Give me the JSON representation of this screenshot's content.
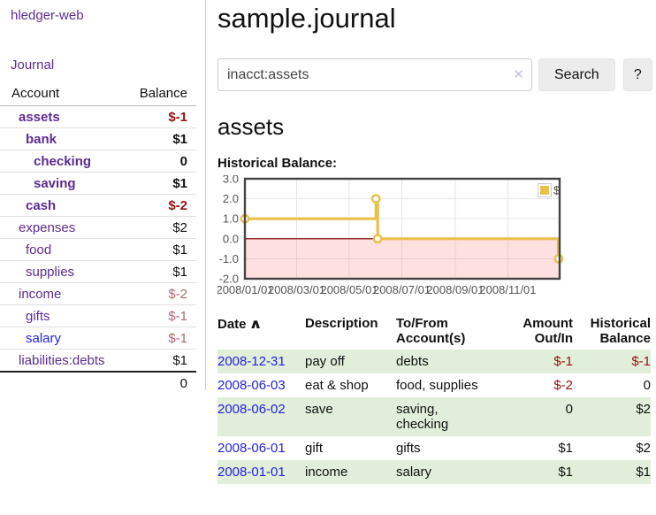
{
  "app": {
    "brand": "hledger-web"
  },
  "sidebar": {
    "journal_link": "Journal",
    "table": {
      "col_account": "Account",
      "col_balance": "Balance"
    },
    "accounts": [
      {
        "name": "assets",
        "level": 1,
        "bold": true,
        "balance": "$-1",
        "neg": true
      },
      {
        "name": "bank",
        "level": 2,
        "bold": true,
        "balance": "$1"
      },
      {
        "name": "checking",
        "level": 3,
        "bold": true,
        "balance": "0"
      },
      {
        "name": "saving",
        "level": 3,
        "bold": true,
        "balance": "$1"
      },
      {
        "name": "cash",
        "level": 2,
        "bold": true,
        "balance": "$-2",
        "neg": true
      },
      {
        "name": "expenses",
        "level": 1,
        "bold": false,
        "balance": "$2"
      },
      {
        "name": "food",
        "level": 2,
        "bold": false,
        "balance": "$1"
      },
      {
        "name": "supplies",
        "level": 2,
        "bold": false,
        "balance": "$1"
      },
      {
        "name": "income",
        "level": 1,
        "bold": false,
        "balance": "$-2",
        "neg_muted": true
      },
      {
        "name": "gifts",
        "level": 2,
        "bold": false,
        "balance": "$-1",
        "neg_muted": true
      },
      {
        "name": "salary",
        "level": 2,
        "bold": false,
        "balance": "$-1",
        "neg_muted": true,
        "blue": true
      },
      {
        "name": "liabilities:debts",
        "level": 1,
        "bold": false,
        "balance": "$1"
      }
    ],
    "total": "0"
  },
  "header": {
    "title": "sample.journal"
  },
  "search": {
    "value": "inacct:assets",
    "clear_icon": "✕",
    "button_label": "Search",
    "help_label": "?"
  },
  "account_page": {
    "heading": "assets",
    "chart_label": "Historical Balance:"
  },
  "chart_data": {
    "type": "line",
    "step": true,
    "title": "Historical Balance:",
    "legend": {
      "label": "$",
      "position": "top-right"
    },
    "series_color": "#e8c04a",
    "zero_line_color": "#9c2c2c",
    "negative_fill": "rgba(255,0,0,0.12)",
    "grid_color": "#e6e6e6",
    "border_color": "#444444",
    "tick_label_color": "#545454",
    "ylim": [
      -2,
      3
    ],
    "yticks": [
      {
        "value": 3,
        "label": "3.0"
      },
      {
        "value": 2,
        "label": "2.0"
      },
      {
        "value": 1,
        "label": "1.0"
      },
      {
        "value": 0,
        "label": "0.0"
      },
      {
        "value": -1,
        "label": "-1.0"
      },
      {
        "value": -2,
        "label": "-2.0"
      }
    ],
    "x_total_days": 365,
    "xticks": [
      {
        "label": "2008/01/01",
        "day": 0,
        "gridline": false
      },
      {
        "label": "2008/03/01",
        "day": 60,
        "gridline": true
      },
      {
        "label": "2008/05/01",
        "day": 121,
        "gridline": true
      },
      {
        "label": "2008/07/01",
        "day": 182,
        "gridline": true
      },
      {
        "label": "2008/09/01",
        "day": 244,
        "gridline": true
      },
      {
        "label": "2008/11/01",
        "day": 305,
        "gridline": true
      }
    ],
    "points": [
      {
        "date": "2008/01/01",
        "day": 0,
        "value": 1
      },
      {
        "date": "2008/06/01",
        "day": 152,
        "value": 2
      },
      {
        "date": "2008/06/03",
        "day": 154,
        "value": 0
      },
      {
        "date": "2008/12/31",
        "day": 365,
        "value": -1
      }
    ]
  },
  "register": {
    "headers": {
      "date": "Date",
      "sort_caret": "∧",
      "description": "Description",
      "to_from": "To/From\nAccount(s)",
      "amount": "Amount\nOut/In",
      "balance": "Historical\nBalance"
    },
    "rows": [
      {
        "date": "2008-12-31",
        "description": "pay off",
        "to_from": "debts",
        "amount": "$-1",
        "amount_neg": true,
        "balance": "$-1",
        "balance_neg": true
      },
      {
        "date": "2008-06-03",
        "description": "eat & shop",
        "to_from": "food, supplies",
        "amount": "$-2",
        "amount_neg": true,
        "balance": "0",
        "balance_neg": false
      },
      {
        "date": "2008-06-02",
        "description": "save",
        "to_from": "saving,\nchecking",
        "amount": "0",
        "amount_neg": false,
        "balance": "$2",
        "balance_neg": false
      },
      {
        "date": "2008-06-01",
        "description": "gift",
        "to_from": "gifts",
        "amount": "$1",
        "amount_neg": false,
        "balance": "$2",
        "balance_neg": false
      },
      {
        "date": "2008-01-01",
        "description": "income",
        "to_from": "salary",
        "amount": "$1",
        "amount_neg": false,
        "balance": "$1",
        "balance_neg": false
      }
    ]
  }
}
